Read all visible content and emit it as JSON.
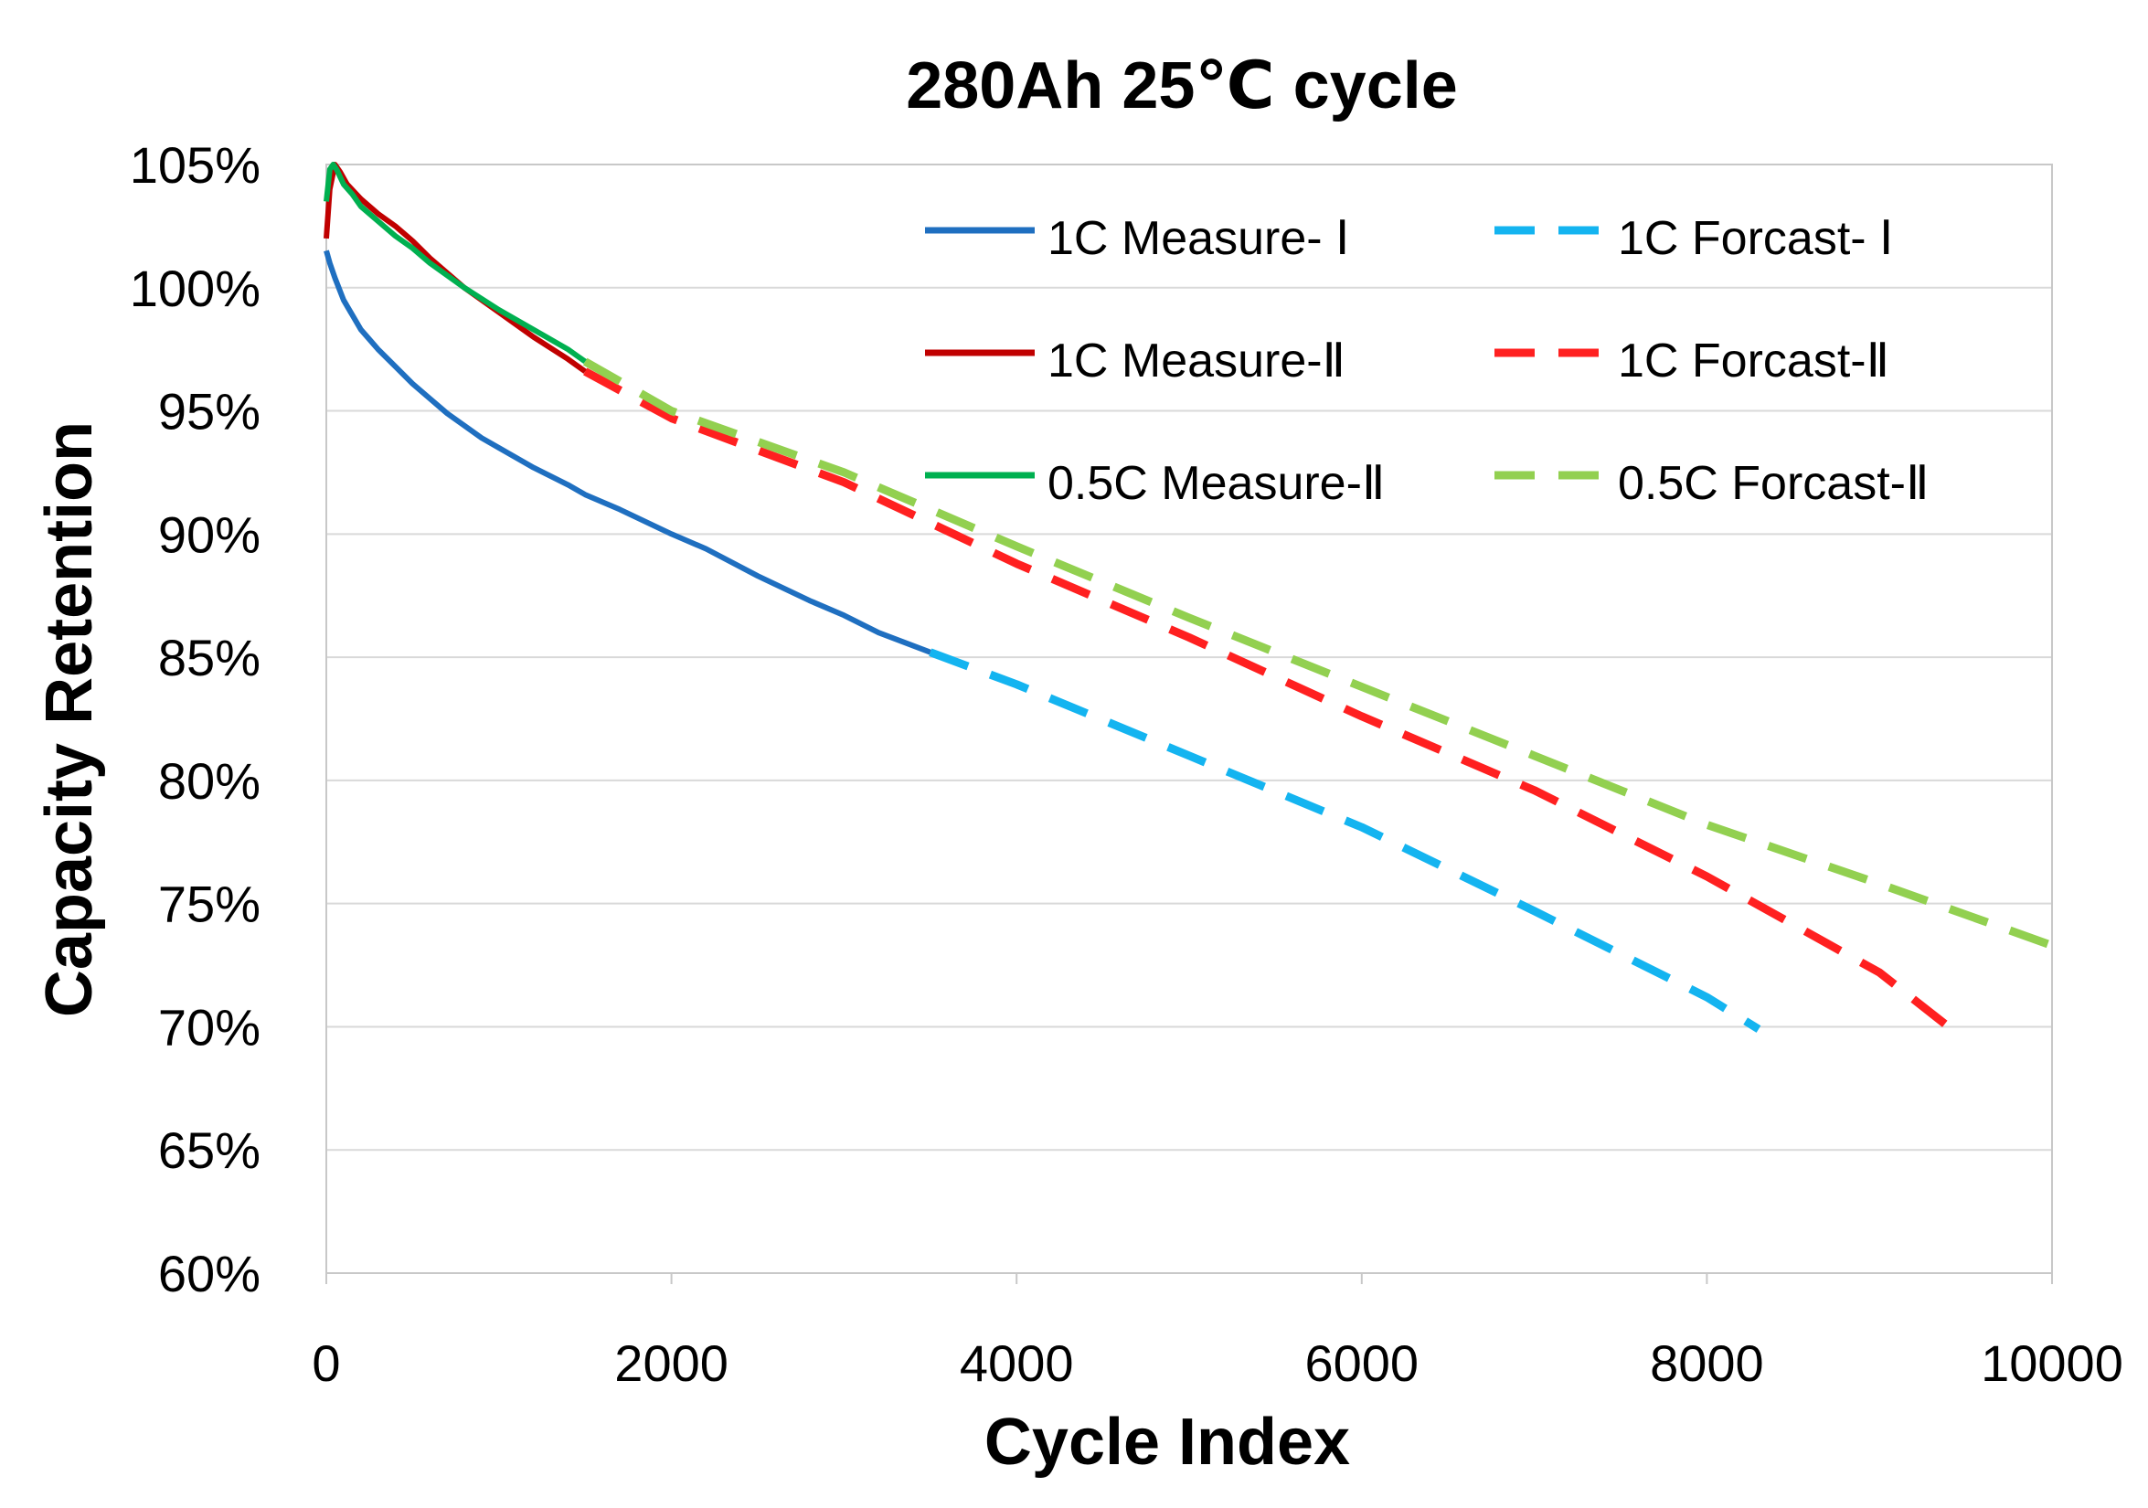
{
  "chart_data": {
    "type": "line",
    "title": "280Ah 25℃ cycle",
    "xlabel": "Cycle Index",
    "ylabel": "Capacity Retention",
    "xlim": [
      0,
      10000
    ],
    "ylim": [
      60,
      105
    ],
    "x_ticks": [
      0,
      2000,
      4000,
      6000,
      8000,
      10000
    ],
    "y_ticks": [
      60,
      65,
      70,
      75,
      80,
      85,
      90,
      95,
      100,
      105
    ],
    "x_tick_labels": [
      "0",
      "2000",
      "4000",
      "6000",
      "8000",
      "10000"
    ],
    "y_tick_labels": [
      "60%",
      "65%",
      "70%",
      "75%",
      "80%",
      "85%",
      "90%",
      "95%",
      "100%",
      "105%"
    ],
    "grid": "horizontal",
    "legend_position": "top-right",
    "series": [
      {
        "name": "1C Measure- Ⅰ",
        "color": "#1F6FC0",
        "style": "solid",
        "x": [
          0,
          20,
          50,
          100,
          150,
          200,
          250,
          300,
          400,
          500,
          600,
          700,
          800,
          900,
          1000,
          1200,
          1400,
          1500,
          1700,
          2000,
          2200,
          2500,
          2800,
          3000,
          3200,
          3500
        ],
        "y": [
          101.5,
          101.0,
          100.4,
          99.5,
          98.9,
          98.3,
          97.9,
          97.5,
          96.8,
          96.1,
          95.5,
          94.9,
          94.4,
          93.9,
          93.5,
          92.7,
          92.0,
          91.6,
          91.0,
          90.0,
          89.4,
          88.3,
          87.3,
          86.7,
          86.0,
          85.2
        ]
      },
      {
        "name": "1C Measure-Ⅱ",
        "color": "#C00000",
        "style": "solid",
        "x": [
          0,
          20,
          50,
          80,
          120,
          200,
          300,
          400,
          500,
          600,
          800,
          1000,
          1200,
          1400,
          1500
        ],
        "y": [
          102.0,
          104.0,
          105.0,
          104.7,
          104.2,
          103.6,
          103.0,
          102.5,
          101.9,
          101.2,
          100.0,
          99.0,
          98.0,
          97.1,
          96.6
        ]
      },
      {
        "name": "0.5C Measure-Ⅱ",
        "color": "#00B050",
        "style": "solid",
        "x": [
          0,
          20,
          40,
          60,
          100,
          150,
          200,
          300,
          400,
          500,
          600,
          700,
          800,
          1000,
          1200,
          1400,
          1500
        ],
        "y": [
          103.5,
          104.8,
          105.0,
          104.8,
          104.2,
          103.8,
          103.3,
          102.7,
          102.1,
          101.6,
          101.0,
          100.5,
          100.0,
          99.1,
          98.3,
          97.5,
          97.0
        ]
      },
      {
        "name": "1C Forcast- Ⅰ",
        "color": "#14B4F0",
        "style": "dashed",
        "x": [
          3500,
          4000,
          5000,
          6000,
          7000,
          8000,
          8300
        ],
        "y": [
          85.2,
          83.9,
          81.0,
          78.1,
          74.7,
          71.2,
          69.9
        ]
      },
      {
        "name": "1C Forcast-Ⅱ",
        "color": "#FF2020",
        "style": "dashed",
        "x": [
          1500,
          2000,
          3000,
          4000,
          5000,
          6000,
          7000,
          8000,
          9000,
          9400
        ],
        "y": [
          96.6,
          94.7,
          92.1,
          88.8,
          85.8,
          82.6,
          79.6,
          76.1,
          72.2,
          70.0
        ]
      },
      {
        "name": "0.5C Forcast-Ⅱ",
        "color": "#92D050",
        "style": "dashed",
        "x": [
          1500,
          2000,
          3000,
          4000,
          5000,
          6000,
          7000,
          8000,
          9000,
          10000
        ],
        "y": [
          97.0,
          95.0,
          92.5,
          89.5,
          86.6,
          83.8,
          81.0,
          78.2,
          75.8,
          73.3
        ]
      }
    ],
    "legend": {
      "left_column": [
        "1C Measure- Ⅰ",
        "1C Measure-Ⅱ",
        "0.5C Measure-Ⅱ"
      ],
      "right_column": [
        "1C Forcast- Ⅰ",
        "1C Forcast-Ⅱ",
        "0.5C Forcast-Ⅱ"
      ]
    }
  }
}
